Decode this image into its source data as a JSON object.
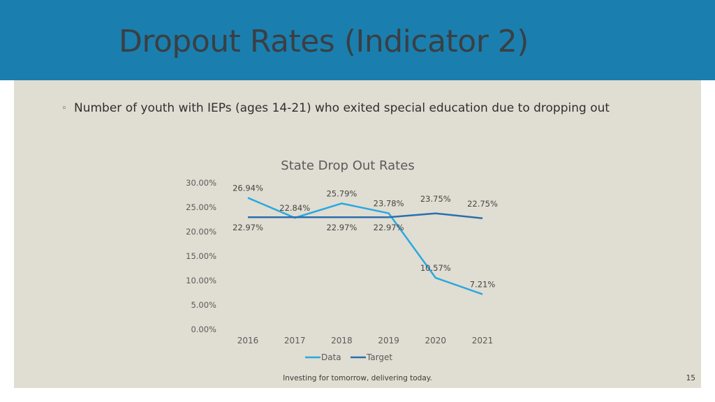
{
  "slide": {
    "title": "Dropout Rates (Indicator 2)",
    "bullet": "Number of youth with IEPs (ages 14-21) who exited special education due to dropping out",
    "bullet_marker": "◦",
    "footer": "Investing for tomorrow, delivering today.",
    "page_number": "15"
  },
  "colors": {
    "header": "#1a7fae",
    "content_bg": "#e0ddd2",
    "data_line": "#2aa8e0",
    "target_line": "#2a6fad"
  },
  "chart_data": {
    "type": "line",
    "title": "State Drop Out Rates",
    "categories": [
      "2016",
      "2017",
      "2018",
      "2019",
      "2020",
      "2021"
    ],
    "y_tick_labels": [
      "30.00%",
      "25.00%",
      "20.00%",
      "15.00%",
      "10.00%",
      "5.00%",
      "0.00%"
    ],
    "ylim": [
      0,
      30
    ],
    "series": [
      {
        "name": "Data",
        "values": [
          26.94,
          22.84,
          25.79,
          23.78,
          10.57,
          7.21
        ],
        "labels": [
          "26.94%",
          "22.84%",
          "25.79%",
          "23.78%",
          "10.57%",
          "7.21%"
        ]
      },
      {
        "name": "Target",
        "values": [
          22.97,
          22.97,
          22.97,
          22.97,
          23.75,
          22.75
        ],
        "labels": [
          "22.97%",
          "",
          "22.97%",
          "22.97%",
          "23.75%",
          "22.75%"
        ]
      }
    ],
    "legend_position": "bottom",
    "grid": false
  }
}
